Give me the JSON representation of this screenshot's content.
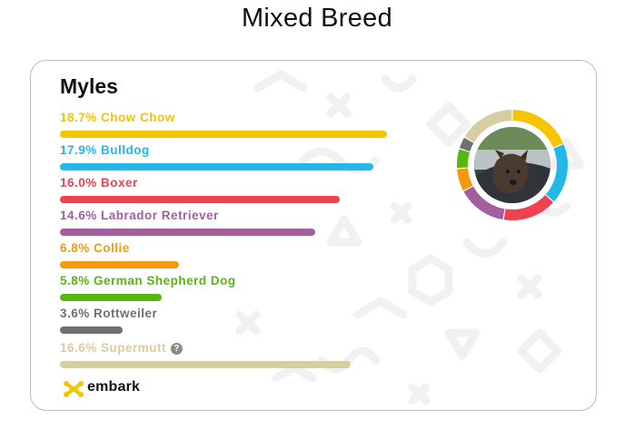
{
  "page_title": "Mixed Breed",
  "dog_name": "Myles",
  "breeds": [
    {
      "percent": "18.7%",
      "name": "Chow Chow",
      "value": 18.7,
      "color": "#f6c400"
    },
    {
      "percent": "17.9%",
      "name": "Bulldog",
      "value": 17.9,
      "color": "#22b8e8"
    },
    {
      "percent": "16.0%",
      "name": "Boxer",
      "value": 16.0,
      "color": "#f0414e"
    },
    {
      "percent": "14.6%",
      "name": "Labrador Retriever",
      "value": 14.6,
      "color": "#a35ea0"
    },
    {
      "percent": "6.8%",
      "name": "Collie",
      "value": 6.8,
      "color": "#f59a0c"
    },
    {
      "percent": "5.8%",
      "name": "German Shepherd Dog",
      "value": 5.8,
      "color": "#56b80f"
    },
    {
      "percent": "3.6%",
      "name": "Rottweiler",
      "value": 3.6,
      "color": "#6f6f6f"
    },
    {
      "percent": "16.6%",
      "name": "Supermutt",
      "value": 16.6,
      "color": "#d8cda1",
      "has_help_icon": true
    }
  ],
  "brand": {
    "name": "embark",
    "color": "#f6c400"
  },
  "icons": {
    "help": "question-circle-icon",
    "brand": "embark-logo-icon",
    "photo": "dog-photo"
  }
}
